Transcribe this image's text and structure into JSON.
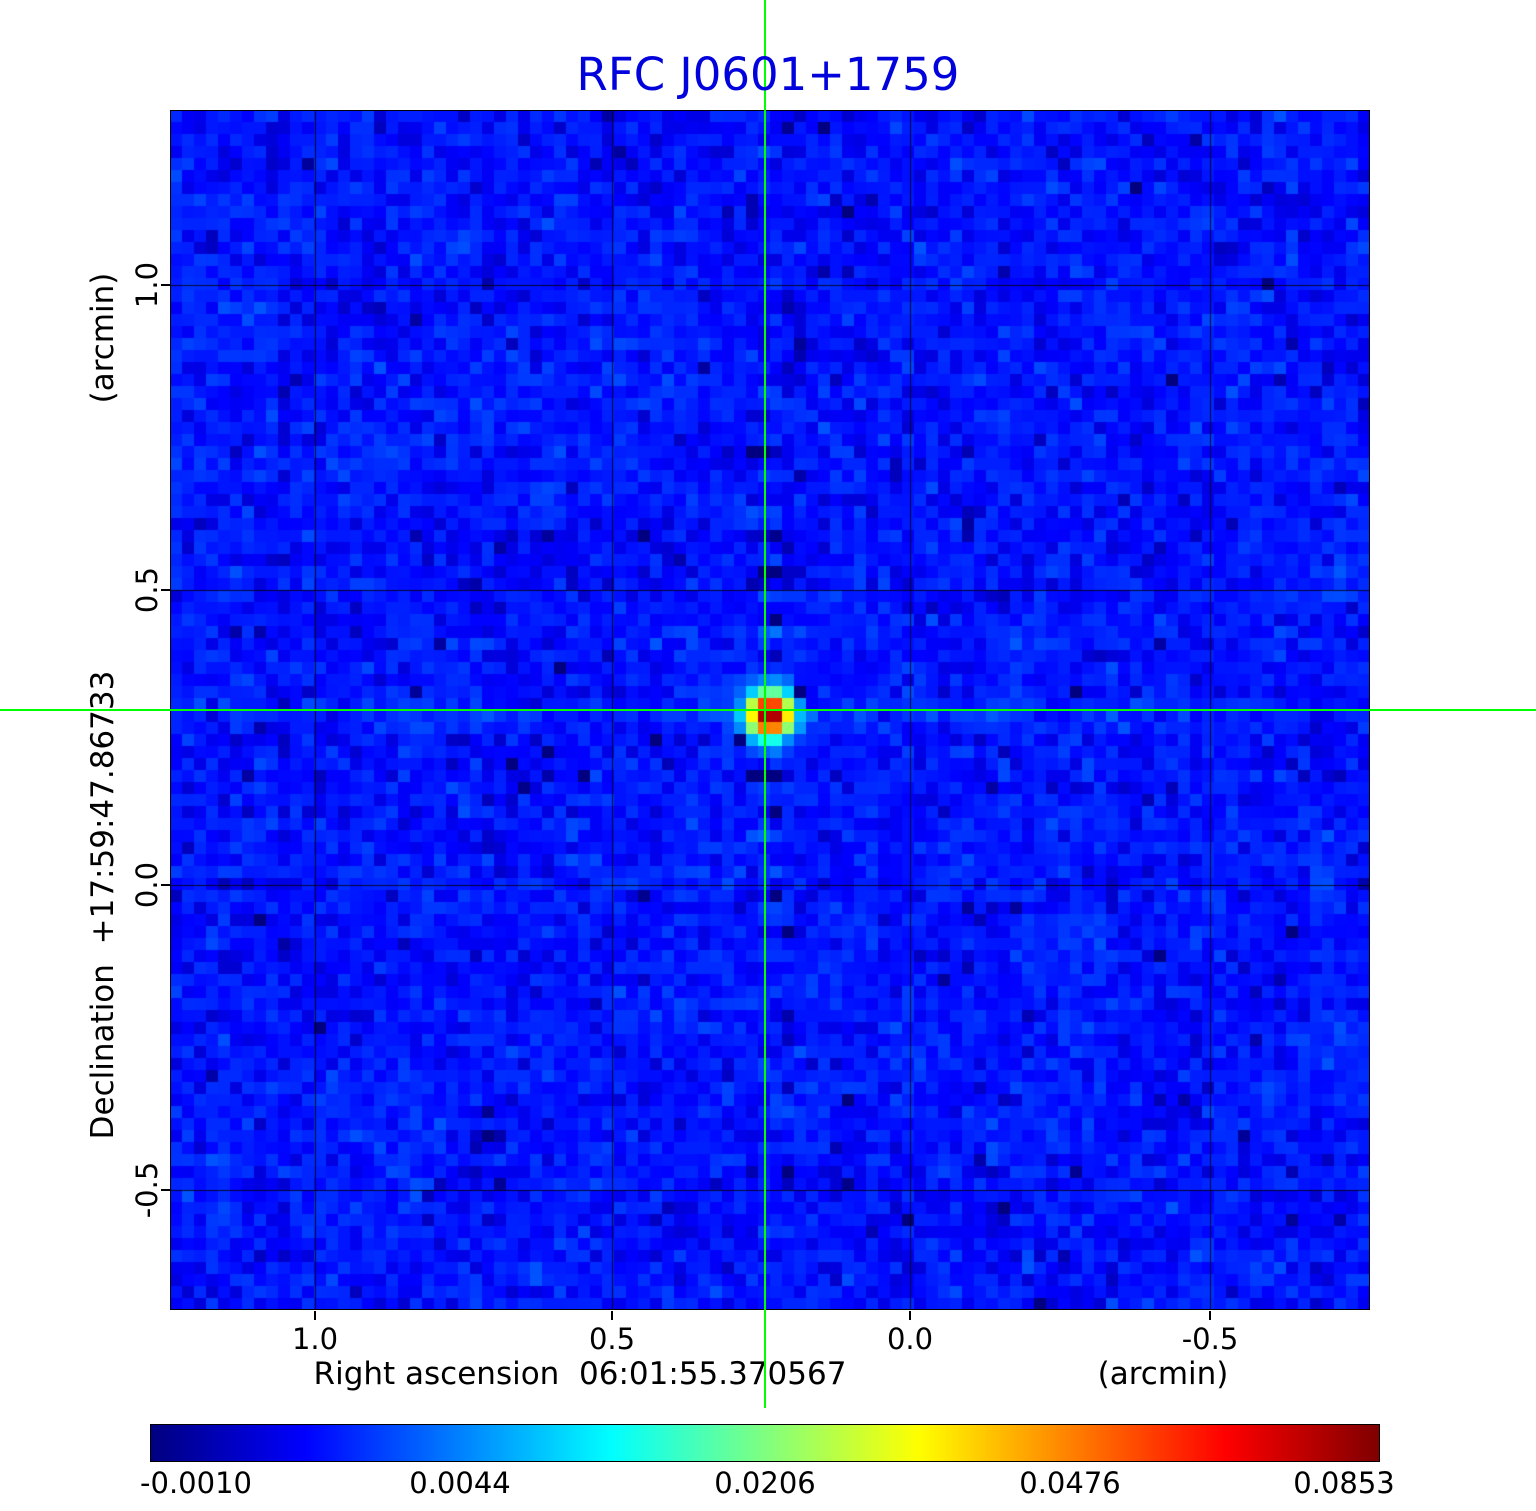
{
  "title": "RFC J0601+1759",
  "colors": {
    "title_blue": "#0202dd",
    "crosshair_green": "#00ff00",
    "grid_black": "#000000",
    "background": "#ffffff"
  },
  "axes": {
    "x_label": "Right ascension  06:01:55.370567",
    "x_unit": "(arcmin)",
    "y_label": "Declination  +17:59:47.86733",
    "y_unit": "(arcmin)",
    "x_ticks": [
      "1.0",
      "0.5",
      "0.0",
      "-0.5"
    ],
    "y_ticks": [
      "1.0",
      "0.5",
      "0.0",
      "-0.5"
    ]
  },
  "colorbar": {
    "tick_labels": [
      "-0.0010",
      "0.0044",
      "0.0206",
      "0.0476",
      "0.0853"
    ],
    "min": -0.001,
    "max": 0.0853,
    "scale": "sqrt",
    "colormap": "jet"
  },
  "chart_data": {
    "type": "heatmap",
    "title": "RFC J0601+1759",
    "xlabel": "Right ascension 06:01:55.370567 (arcmin)",
    "ylabel": "Declination +17:59:47.86733 (arcmin)",
    "x_axis": {
      "ticks": [
        1.0,
        0.5,
        0.0,
        -0.5
      ],
      "range": [
        1.24,
        -0.77
      ],
      "unit": "arcmin"
    },
    "y_axis": {
      "ticks": [
        1.0,
        0.5,
        0.0,
        -0.5
      ],
      "range": [
        -0.7,
        1.29
      ],
      "unit": "arcmin"
    },
    "intensity_range": [
      -0.001,
      0.0853
    ],
    "intensity_scale": "sqrt",
    "colormap": "jet",
    "colorbar_ticks": [
      -0.001,
      0.0044,
      0.0206,
      0.0476,
      0.0853
    ],
    "background_noise_level": 0.001,
    "peak_source": {
      "x_arcmin": 0.24,
      "y_arcmin": 0.29,
      "peak_intensity": 0.0853,
      "marked_by": "green crosshair"
    },
    "grid": true,
    "grid_color": "#000000"
  }
}
